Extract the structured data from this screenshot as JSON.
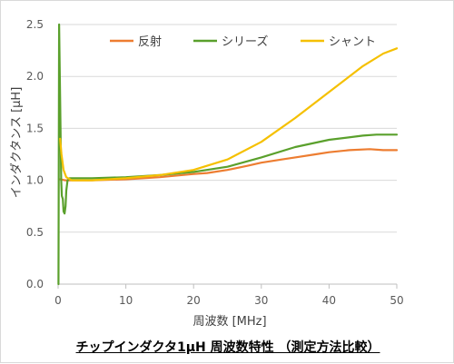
{
  "caption": "チップインダクタ1μH 周波数特性 （測定方法比較）",
  "colors": {
    "reflection": "#ed7d31",
    "series": "#5aa02c",
    "shunt": "#f5c000",
    "grid": "#d9d9d9",
    "axis": "#bfbfbf"
  },
  "chart_data": {
    "type": "line",
    "title": "",
    "xlabel": "周波数 [MHz]",
    "ylabel": "インダクタンス [μH]",
    "xlim": [
      0,
      50
    ],
    "ylim": [
      0,
      2.5
    ],
    "xticks": [
      "0",
      "10",
      "20",
      "30",
      "40",
      "50"
    ],
    "yticks": [
      "0.0",
      "0.5",
      "1.0",
      "1.5",
      "2.0",
      "2.5"
    ],
    "grid": "horizontal",
    "legend_position": "top",
    "series": [
      {
        "name": "反射",
        "color_key": "reflection",
        "points": [
          [
            0.3,
            1.01
          ],
          [
            1,
            1.0
          ],
          [
            2,
            1.0
          ],
          [
            5,
            1.0
          ],
          [
            10,
            1.01
          ],
          [
            15,
            1.03
          ],
          [
            20,
            1.06
          ],
          [
            22,
            1.07
          ],
          [
            25,
            1.1
          ],
          [
            28,
            1.14
          ],
          [
            30,
            1.17
          ],
          [
            33,
            1.2
          ],
          [
            35,
            1.22
          ],
          [
            38,
            1.25
          ],
          [
            40,
            1.27
          ],
          [
            43,
            1.29
          ],
          [
            46,
            1.3
          ],
          [
            48,
            1.29
          ],
          [
            50,
            1.29
          ]
        ]
      },
      {
        "name": "シリーズ",
        "color_key": "series",
        "points": [
          [
            0.05,
            0.0
          ],
          [
            0.15,
            2.5
          ],
          [
            0.3,
            1.8
          ],
          [
            0.45,
            1.0
          ],
          [
            0.55,
            0.85
          ],
          [
            0.7,
            0.82
          ],
          [
            0.8,
            0.7
          ],
          [
            0.95,
            0.68
          ],
          [
            1.1,
            0.75
          ],
          [
            1.2,
            0.9
          ],
          [
            1.4,
            1.0
          ],
          [
            1.7,
            1.02
          ],
          [
            3,
            1.02
          ],
          [
            5,
            1.02
          ],
          [
            10,
            1.03
          ],
          [
            15,
            1.05
          ],
          [
            20,
            1.08
          ],
          [
            25,
            1.13
          ],
          [
            30,
            1.22
          ],
          [
            35,
            1.32
          ],
          [
            40,
            1.39
          ],
          [
            45,
            1.43
          ],
          [
            47,
            1.44
          ],
          [
            50,
            1.44
          ]
        ]
      },
      {
        "name": "シャント",
        "color_key": "shunt",
        "points": [
          [
            0.3,
            1.4
          ],
          [
            0.5,
            1.25
          ],
          [
            0.8,
            1.1
          ],
          [
            1.2,
            1.03
          ],
          [
            2,
            1.0
          ],
          [
            5,
            1.0
          ],
          [
            10,
            1.02
          ],
          [
            15,
            1.05
          ],
          [
            20,
            1.1
          ],
          [
            25,
            1.2
          ],
          [
            30,
            1.37
          ],
          [
            35,
            1.6
          ],
          [
            40,
            1.85
          ],
          [
            45,
            2.1
          ],
          [
            48,
            2.22
          ],
          [
            50,
            2.27
          ]
        ]
      }
    ]
  }
}
